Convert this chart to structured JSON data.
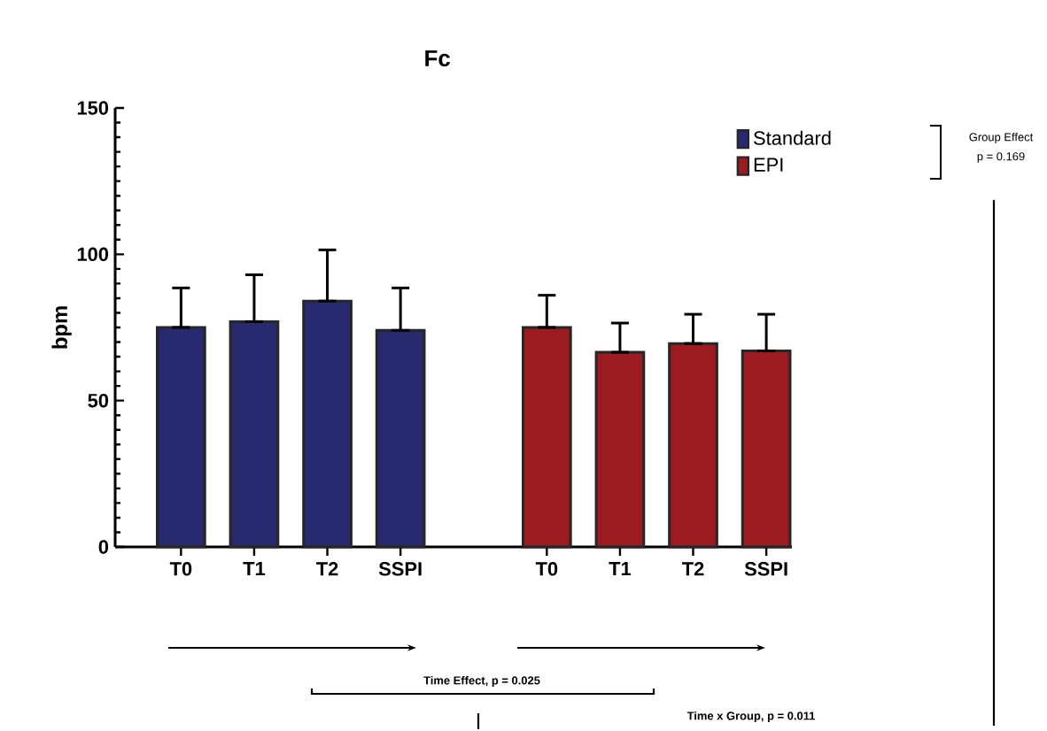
{
  "chart_data": {
    "type": "bar",
    "title": "Fc",
    "ylabel": "bpm",
    "categories": [
      "T0",
      "T1",
      "T2",
      "SSPI",
      null,
      "T0",
      "T1",
      "T2",
      "SSPI"
    ],
    "series": [
      {
        "name": "Standard",
        "color": "#272a6e",
        "values": [
          75,
          77,
          84,
          74,
          null,
          null,
          null,
          null,
          null
        ],
        "errors": [
          [
            75,
            88.5
          ],
          [
            77,
            93
          ],
          [
            84,
            101.5
          ],
          [
            74,
            88.5
          ],
          null,
          null,
          null,
          null,
          null
        ]
      },
      {
        "name": "EPI",
        "color": "#9b1b20",
        "values": [
          null,
          null,
          null,
          null,
          null,
          75,
          66.5,
          69.5,
          67
        ],
        "errors": [
          null,
          null,
          null,
          null,
          null,
          [
            75,
            86
          ],
          [
            66.5,
            76.5
          ],
          [
            69.5,
            79.5
          ],
          [
            67,
            79.5
          ]
        ]
      }
    ],
    "ylim": [
      0,
      150
    ],
    "yticks": [
      0,
      50,
      100,
      150
    ],
    "legend": "top right",
    "annotations": [
      "Group Effect",
      "p = 0.169",
      "Time Effect, p = 0.025",
      "Time x Group, p = 0.011"
    ]
  }
}
